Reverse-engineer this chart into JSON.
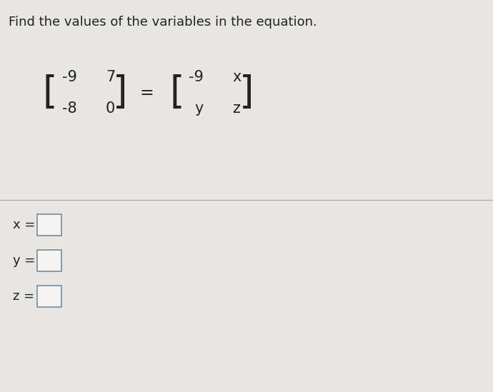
{
  "title": "Find the values of the variables in the equation.",
  "title_fontsize": 13,
  "background_color": "#e8e6e3",
  "divider_color": "#b0b0b0",
  "text_color": "#222222",
  "matrix1": [
    [
      "-9",
      "7"
    ],
    [
      "-8",
      "0"
    ]
  ],
  "matrix2": [
    [
      "-9",
      "x"
    ],
    [
      "y",
      "z"
    ]
  ],
  "var_labels": [
    "x =",
    "y =",
    "z ="
  ],
  "box_color": "#f5f4f2",
  "box_border_color": "#7a8a9a",
  "matrix_fontsize": 15,
  "bracket_fontsize": 38,
  "var_fontsize": 13,
  "eq_fontsize": 15
}
